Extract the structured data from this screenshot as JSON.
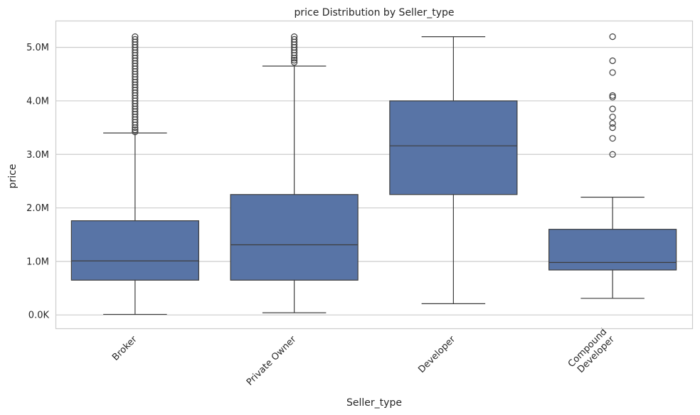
{
  "chart_data": {
    "type": "box",
    "title": "price Distribution by Seller_type",
    "xlabel": "Seller_type",
    "ylabel": "price",
    "ylim": [
      -250000,
      5500000
    ],
    "yticks": [
      {
        "value": 0,
        "label": "0.0K"
      },
      {
        "value": 1000000,
        "label": "1.0M"
      },
      {
        "value": 2000000,
        "label": "2.0M"
      },
      {
        "value": 3000000,
        "label": "3.0M"
      },
      {
        "value": 4000000,
        "label": "4.0M"
      },
      {
        "value": 5000000,
        "label": "5.0M"
      }
    ],
    "grid": true,
    "box_color": "#5874a6",
    "line_color": "#3d3d3d",
    "categories": [
      "Broker",
      "Private Owner",
      "Developer",
      "Compound\nDeveloper"
    ],
    "boxes": [
      {
        "category": "Broker",
        "whisker_low": 10000,
        "q1": 650000,
        "median": 1010000,
        "q3": 1760000,
        "whisker_high": 3400000,
        "outliers": [
          3420000,
          3460000,
          3500000,
          3550000,
          3600000,
          3650000,
          3700000,
          3750000,
          3800000,
          3850000,
          3900000,
          3950000,
          4000000,
          4050000,
          4100000,
          4150000,
          4200000,
          4250000,
          4300000,
          4350000,
          4400000,
          4450000,
          4500000,
          4550000,
          4600000,
          4650000,
          4700000,
          4750000,
          4800000,
          4850000,
          4900000,
          4950000,
          5000000,
          5050000,
          5100000,
          5150000,
          5200000
        ]
      },
      {
        "category": "Private Owner",
        "whisker_low": 40000,
        "q1": 650000,
        "median": 1310000,
        "q3": 2250000,
        "whisker_high": 4650000,
        "outliers": [
          4720000,
          4760000,
          4800000,
          4850000,
          4900000,
          4950000,
          5000000,
          5050000,
          5100000,
          5150000,
          5200000
        ]
      },
      {
        "category": "Developer",
        "whisker_low": 210000,
        "q1": 2250000,
        "median": 3160000,
        "q3": 4000000,
        "whisker_high": 5200000,
        "outliers": []
      },
      {
        "category": "Compound\nDeveloper",
        "whisker_low": 310000,
        "q1": 840000,
        "median": 980000,
        "q3": 1600000,
        "whisker_high": 2200000,
        "outliers": [
          3000000,
          3300000,
          3500000,
          3580000,
          3700000,
          3850000,
          4070000,
          4100000,
          4530000,
          4750000,
          5200000
        ]
      }
    ]
  }
}
